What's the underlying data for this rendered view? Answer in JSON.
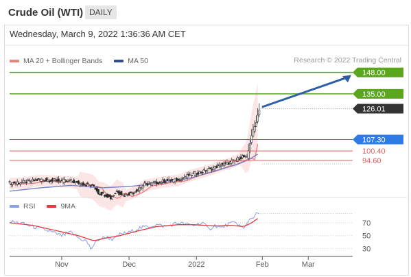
{
  "header": {
    "title": "Crude Oil (WTI)",
    "timeframe": "DAILY"
  },
  "datetime": "Wednesday, March 9, 2022 1:36:36 AM CET",
  "legend": {
    "ma20": "MA 20 + Bollinger Bands",
    "ma50": "MA 50",
    "rsi": "RSI",
    "ma9": "9MA"
  },
  "credit": "Research © 2022 Trading Central",
  "colors": {
    "green": "#5aa61d",
    "blue": "#2f7be5",
    "red": "#e8585e",
    "dark": "#333333",
    "ma20": "#f08080",
    "ma50": "#7480c8",
    "rsi": "#8fa2e6",
    "ma9": "#e43a3a",
    "arrow": "#2d5fa6"
  },
  "chart_data": {
    "type": "candlestick",
    "price_range": [
      73,
      152
    ],
    "x_ticks": [
      "Nov",
      "Dec",
      "2022",
      "Feb",
      "Mar"
    ],
    "levels": [
      {
        "value": 148.0,
        "label": "148.00",
        "style": "green"
      },
      {
        "value": 135.0,
        "label": "135.00",
        "style": "green"
      },
      {
        "value": 126.01,
        "label": "126.01",
        "style": "dark"
      },
      {
        "value": 107.3,
        "label": "107.30",
        "style": "blue"
      },
      {
        "value": 100.4,
        "label": "100.40",
        "style": "red"
      },
      {
        "value": 94.6,
        "label": "94.60",
        "style": "red"
      }
    ],
    "price_path": [
      [
        0,
        81
      ],
      [
        10,
        81.5
      ],
      [
        20,
        83
      ],
      [
        30,
        82.5
      ],
      [
        40,
        82
      ],
      [
        50,
        80
      ],
      [
        55,
        79
      ],
      [
        58,
        75
      ],
      [
        62,
        74
      ],
      [
        66,
        72
      ],
      [
        70,
        76
      ],
      [
        75,
        73.5
      ],
      [
        82,
        76
      ],
      [
        88,
        80
      ],
      [
        95,
        81
      ],
      [
        100,
        82
      ],
      [
        110,
        83
      ],
      [
        118,
        86
      ],
      [
        126,
        88
      ],
      [
        133,
        90
      ],
      [
        138,
        92
      ],
      [
        143,
        93
      ],
      [
        148,
        95
      ],
      [
        152,
        97
      ],
      [
        155,
        96
      ],
      [
        158,
        110
      ],
      [
        160,
        115
      ],
      [
        162,
        122
      ],
      [
        163,
        126
      ]
    ],
    "ma50_path": [
      [
        0,
        76
      ],
      [
        20,
        78
      ],
      [
        40,
        79.5
      ],
      [
        60,
        78
      ],
      [
        80,
        79
      ],
      [
        100,
        81
      ],
      [
        118,
        84
      ],
      [
        133,
        88
      ],
      [
        148,
        92
      ],
      [
        156,
        95
      ],
      [
        163,
        99
      ]
    ],
    "rsi": {
      "ticks": [
        70,
        50,
        30
      ],
      "range": [
        20,
        90
      ],
      "rsi_path": [
        [
          0,
          72
        ],
        [
          8,
          69
        ],
        [
          15,
          64
        ],
        [
          22,
          60
        ],
        [
          28,
          55
        ],
        [
          34,
          50
        ],
        [
          40,
          55
        ],
        [
          46,
          45
        ],
        [
          50,
          42
        ],
        [
          53,
          30
        ],
        [
          58,
          44
        ],
        [
          63,
          48
        ],
        [
          68,
          44
        ],
        [
          72,
          52
        ],
        [
          78,
          55
        ],
        [
          85,
          62
        ],
        [
          90,
          64
        ],
        [
          96,
          67
        ],
        [
          102,
          64
        ],
        [
          110,
          70
        ],
        [
          114,
          68
        ],
        [
          120,
          66
        ],
        [
          126,
          70
        ],
        [
          130,
          60
        ],
        [
          134,
          66
        ],
        [
          138,
          62
        ],
        [
          143,
          68
        ],
        [
          148,
          70
        ],
        [
          153,
          60
        ],
        [
          156,
          74
        ],
        [
          159,
          79
        ],
        [
          162,
          85
        ],
        [
          163,
          83
        ]
      ],
      "ma9_path": [
        [
          0,
          70
        ],
        [
          15,
          66
        ],
        [
          30,
          58
        ],
        [
          45,
          50
        ],
        [
          55,
          42
        ],
        [
          62,
          46
        ],
        [
          72,
          50
        ],
        [
          85,
          58
        ],
        [
          96,
          64
        ],
        [
          110,
          67
        ],
        [
          120,
          67
        ],
        [
          134,
          65
        ],
        [
          145,
          66
        ],
        [
          153,
          64
        ],
        [
          158,
          70
        ],
        [
          163,
          78
        ]
      ]
    }
  }
}
